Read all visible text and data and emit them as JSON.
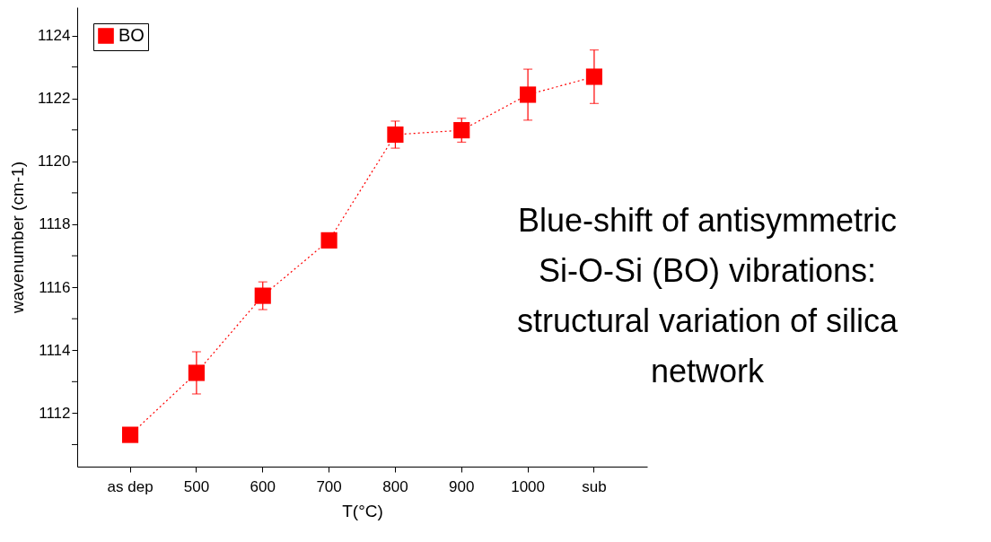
{
  "chart_data": {
    "type": "line",
    "xlabel": "T(°C)",
    "ylabel": "wavenumber (cm-1)",
    "categories": [
      "as dep",
      "500",
      "600",
      "700",
      "800",
      "900",
      "1000",
      "sub"
    ],
    "series": [
      {
        "name": "BO",
        "color": "#ff0000",
        "values": [
          1111.31,
          1113.28,
          1115.73,
          1117.49,
          1120.85,
          1120.99,
          1122.12,
          1122.69
        ],
        "errors": [
          0.2,
          0.67,
          0.44,
          null,
          0.43,
          0.38,
          0.81,
          0.85
        ]
      }
    ],
    "ylim": [
      1110.3,
      1124.9
    ],
    "yticks": [
      {
        "value": 1111,
        "label": null
      },
      1112,
      {
        "value": 1113,
        "label": null
      },
      1114,
      {
        "value": 1115,
        "label": null
      },
      1116,
      {
        "value": 1117,
        "label": null
      },
      1118,
      {
        "value": 1119,
        "label": null
      },
      1120,
      {
        "value": 1121,
        "label": null
      },
      1122,
      {
        "value": 1123,
        "label": null
      },
      1124
    ],
    "marker": "square",
    "line_style": "dotted",
    "grid": false,
    "legend": "top left",
    "annotations": [
      "Blue-shift of antisymmetric\nSi-O-Si (BO) vibrations:\nstructural variation of silica\nnetwork"
    ]
  }
}
